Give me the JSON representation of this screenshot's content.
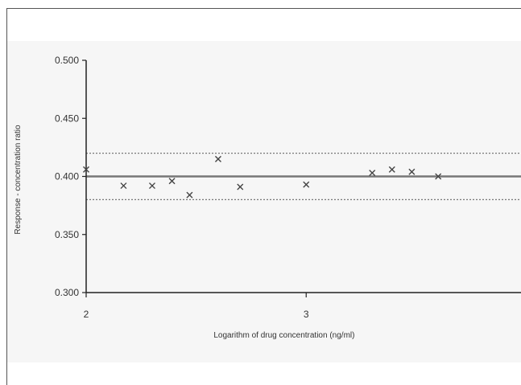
{
  "chart_data": {
    "type": "scatter",
    "title": "",
    "xlabel": "Logarithm of drug concentration (ng/ml)",
    "ylabel": "Response - concentration ratio",
    "xlim": [
      2,
      3.98
    ],
    "ylim": [
      0.3,
      0.5
    ],
    "x_ticks": [
      "2",
      "3"
    ],
    "y_ticks": [
      "0.500",
      "0.450",
      "0.400",
      "0.350",
      "0.300"
    ],
    "grid": false,
    "marker": "x",
    "points": [
      {
        "x": 2.0,
        "y": 0.406
      },
      {
        "x": 2.17,
        "y": 0.392
      },
      {
        "x": 2.3,
        "y": 0.392
      },
      {
        "x": 2.39,
        "y": 0.396
      },
      {
        "x": 2.47,
        "y": 0.384
      },
      {
        "x": 2.6,
        "y": 0.415
      },
      {
        "x": 2.7,
        "y": 0.391
      },
      {
        "x": 3.0,
        "y": 0.393
      },
      {
        "x": 3.3,
        "y": 0.403
      },
      {
        "x": 3.39,
        "y": 0.406
      },
      {
        "x": 3.48,
        "y": 0.404
      },
      {
        "x": 3.6,
        "y": 0.4
      }
    ],
    "reference_lines": [
      {
        "y": 0.4,
        "style": "solid"
      },
      {
        "y": 0.42,
        "style": "dotted"
      },
      {
        "y": 0.38,
        "style": "dotted"
      }
    ],
    "colors": {
      "marker": "#444444",
      "line": "#777777",
      "axis": "#222222"
    }
  }
}
